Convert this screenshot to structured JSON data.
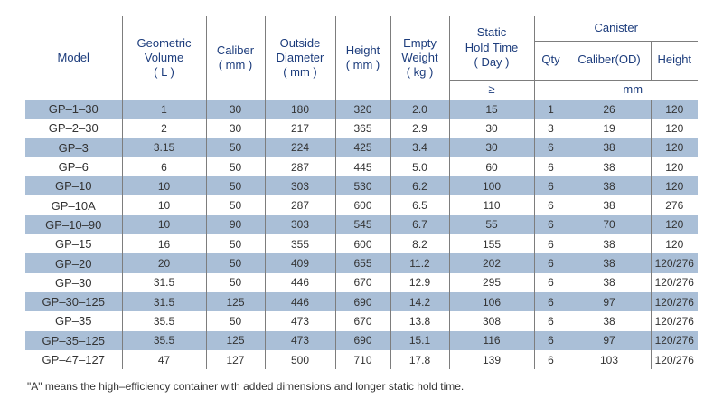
{
  "colors": {
    "header_text": "#1c3c7c",
    "body_text": "#333333",
    "row_stripe": "#aabfd7",
    "grid_line": "#7d7d7d"
  },
  "table": {
    "header": {
      "model": "Model",
      "geometric_volume": "Geometric\nVolume\n( L )",
      "caliber": "Caliber\n( mm )",
      "outside_diameter": "Outside\nDiameter\n( mm )",
      "height": "Height\n( mm )",
      "empty_weight": "Empty\nWeight\n( kg )",
      "static_hold_time": "Static\nHold Time\n( Day )",
      "canister": "Canister",
      "qty": "Qty",
      "canister_caliber": "Caliber(OD)",
      "canister_height": "Height",
      "gte": "≥",
      "mm": "mm"
    },
    "rows": [
      [
        "GP–1–30",
        "1",
        "30",
        "180",
        "320",
        "2.0",
        "15",
        "1",
        "26",
        "120"
      ],
      [
        "GP–2–30",
        "2",
        "30",
        "217",
        "365",
        "2.9",
        "30",
        "3",
        "19",
        "120"
      ],
      [
        "GP–3",
        "3.15",
        "50",
        "224",
        "425",
        "3.4",
        "30",
        "6",
        "38",
        "120"
      ],
      [
        "GP–6",
        "6",
        "50",
        "287",
        "445",
        "5.0",
        "60",
        "6",
        "38",
        "120"
      ],
      [
        "GP–10",
        "10",
        "50",
        "303",
        "530",
        "6.2",
        "100",
        "6",
        "38",
        "120"
      ],
      [
        "GP–10A",
        "10",
        "50",
        "287",
        "600",
        "6.5",
        "110",
        "6",
        "38",
        "276"
      ],
      [
        "GP–10–90",
        "10",
        "90",
        "303",
        "545",
        "6.7",
        "55",
        "6",
        "70",
        "120"
      ],
      [
        "GP–15",
        "16",
        "50",
        "355",
        "600",
        "8.2",
        "155",
        "6",
        "38",
        "120"
      ],
      [
        "GP–20",
        "20",
        "50",
        "409",
        "655",
        "11.2",
        "202",
        "6",
        "38",
        "120/276"
      ],
      [
        "GP–30",
        "31.5",
        "50",
        "446",
        "670",
        "12.9",
        "295",
        "6",
        "38",
        "120/276"
      ],
      [
        "GP–30–125",
        "31.5",
        "125",
        "446",
        "690",
        "14.2",
        "106",
        "6",
        "97",
        "120/276"
      ],
      [
        "GP–35",
        "35.5",
        "50",
        "473",
        "670",
        "13.8",
        "308",
        "6",
        "38",
        "120/276"
      ],
      [
        "GP–35–125",
        "35.5",
        "125",
        "473",
        "690",
        "15.1",
        "116",
        "6",
        "97",
        "120/276"
      ],
      [
        "GP–47–127",
        "47",
        "127",
        "500",
        "710",
        "17.8",
        "139",
        "6",
        "103",
        "120/276"
      ]
    ]
  },
  "footnote": "\"A\" means the high–efficiency container with added dimensions and longer static hold time."
}
